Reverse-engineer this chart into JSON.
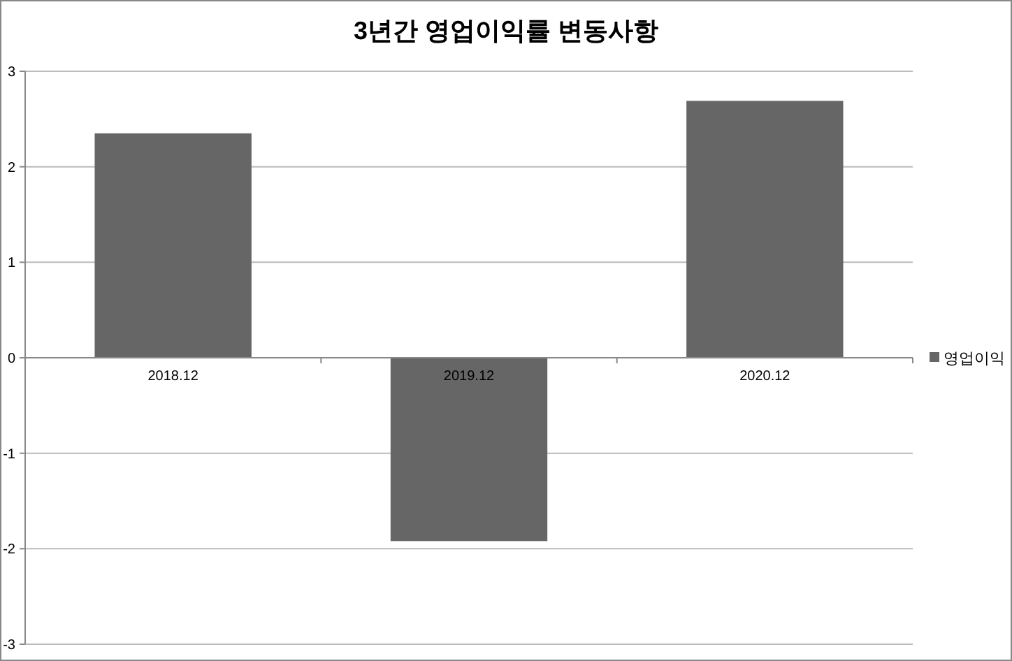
{
  "chart_data": {
    "type": "bar",
    "title": "3년간 영업이익률 변동사항",
    "categories": [
      "2018.12",
      "2019.12",
      "2020.12"
    ],
    "series": [
      {
        "name": "영업이익",
        "color": "#666666",
        "values": [
          2.35,
          -1.92,
          2.69
        ]
      }
    ],
    "ylim": [
      -3,
      3
    ],
    "yticks": [
      -3,
      -2,
      -1,
      0,
      1,
      2,
      3
    ],
    "grid": "y",
    "legend": "right"
  }
}
